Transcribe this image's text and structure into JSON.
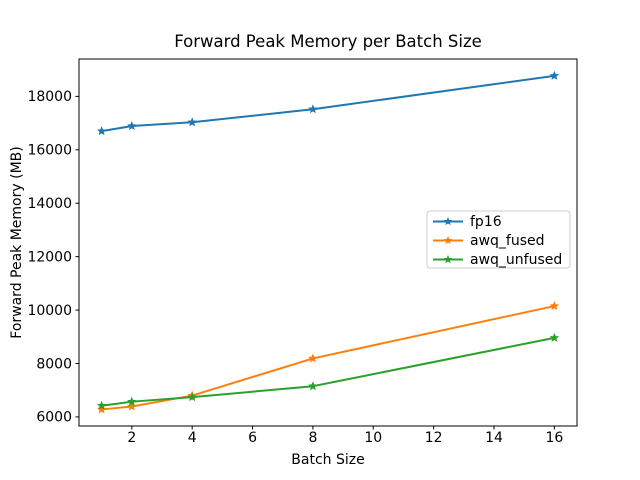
{
  "chart_data": {
    "type": "line",
    "title": "Forward Peak Memory per Batch Size",
    "xlabel": "Batch Size",
    "ylabel": "Forward Peak Memory (MB)",
    "x": [
      1,
      2,
      4,
      8,
      16
    ],
    "series": [
      {
        "name": "fp16",
        "color": "#1f77b4",
        "values": [
          16700,
          16890,
          17030,
          17520,
          18770
        ]
      },
      {
        "name": "awq_fused",
        "color": "#ff7f0e",
        "values": [
          6280,
          6390,
          6800,
          8190,
          10150
        ]
      },
      {
        "name": "awq_unfused",
        "color": "#2ca02c",
        "values": [
          6420,
          6570,
          6740,
          7150,
          8960
        ]
      }
    ],
    "xticks": [
      2,
      4,
      6,
      8,
      10,
      12,
      14,
      16
    ],
    "yticks": [
      6000,
      8000,
      10000,
      12000,
      14000,
      16000,
      18000
    ],
    "xlim": [
      0.25,
      16.75
    ],
    "ylim": [
      5660,
      19400
    ],
    "marker": "star",
    "grid": false,
    "legend": {
      "position": "center-right",
      "entries": [
        "fp16",
        "awq_fused",
        "awq_unfused"
      ]
    }
  }
}
